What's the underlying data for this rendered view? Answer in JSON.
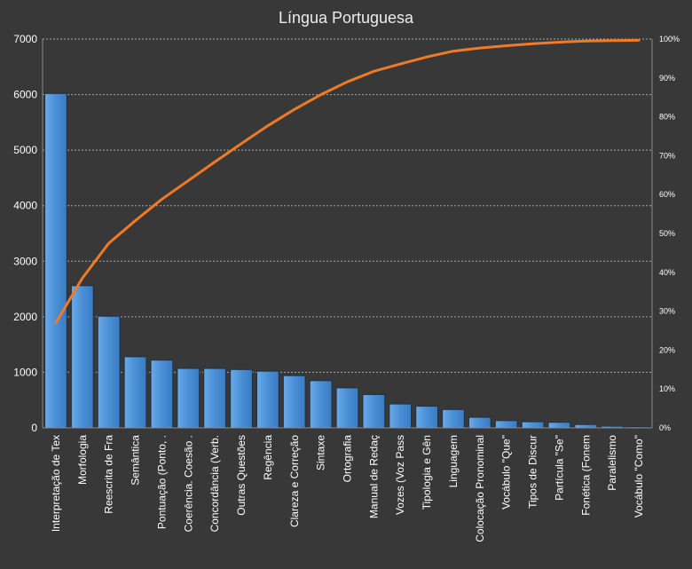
{
  "chart_data": {
    "type": "bar",
    "title": "Língua Portuguesa",
    "categories": [
      "Interpretação de Tex",
      "Morfologia",
      "Reescrita de Fra",
      "Semântica",
      "Pontuação (Ponto, .",
      "Coerência. Coesão .",
      "Concordância (Verb.",
      "Outras Questões",
      "Regência",
      "Clareza e Correção",
      "Sintaxe",
      "Ortografia",
      "Manual de Redaç",
      "Vozes (Voz Pass",
      "Tipologia e Gên",
      "Linguagem",
      "Colocação Pronominal",
      "Vocábulo \"Que\"",
      "Tipos de Discur",
      "Partícula \"Se\"",
      "Fonética (Fonem",
      "Paralelismo",
      "Vocábulo \"Como\""
    ],
    "series": [
      {
        "type": "bar",
        "axis": "left",
        "values": [
          6020,
          2560,
          2010,
          1280,
          1220,
          1070,
          1070,
          1050,
          1020,
          940,
          850,
          720,
          600,
          430,
          390,
          330,
          190,
          130,
          110,
          100,
          60,
          30,
          20
        ]
      },
      {
        "type": "line",
        "axis": "right",
        "values": [
          27.0,
          38.5,
          47.5,
          53.3,
          58.8,
          63.6,
          68.4,
          73.1,
          77.7,
          81.9,
          85.7,
          89.0,
          91.7,
          93.6,
          95.4,
          96.9,
          97.7,
          98.3,
          98.8,
          99.2,
          99.5,
          99.6,
          99.7
        ]
      }
    ],
    "ylim": [
      0,
      7000
    ],
    "yticks": [
      "0",
      "1000",
      "2000",
      "3000",
      "4000",
      "5000",
      "6000",
      "7000"
    ],
    "y2lim": [
      0,
      100
    ],
    "y2ticks": [
      "0%",
      "10%",
      "20%",
      "30%",
      "40%",
      "50%",
      "60%",
      "70%",
      "80%",
      "90%",
      "100%"
    ],
    "grid": true,
    "colors": {
      "background": "#383838",
      "bar_fill": "#4a8fd6",
      "bar_stroke": "#1f2f45",
      "line": "#f07a26",
      "text": "#ffffff",
      "grid": "#a8a8a8"
    }
  }
}
